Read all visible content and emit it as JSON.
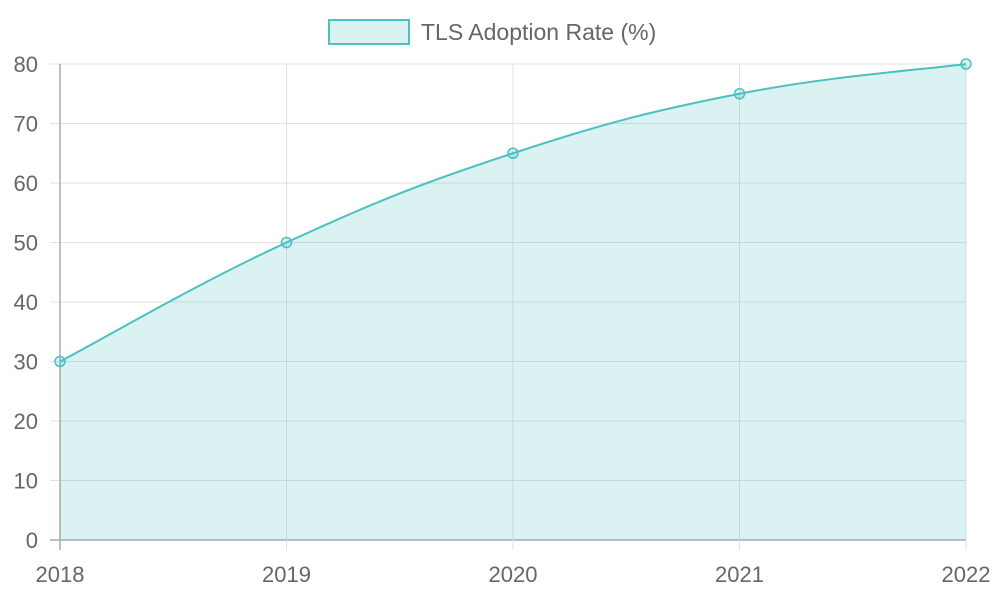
{
  "chart_data": {
    "type": "line",
    "fill": true,
    "categories": [
      "2018",
      "2019",
      "2020",
      "2021",
      "2022"
    ],
    "series": [
      {
        "name": "TLS Adoption Rate (%)",
        "values": [
          30,
          50,
          65,
          75,
          80
        ],
        "color": "#4bc0c0",
        "fill_color": "rgba(75,192,192,0.2)"
      }
    ],
    "ylim": [
      0,
      80
    ],
    "yticks": [
      0,
      10,
      20,
      30,
      40,
      50,
      60,
      70,
      80
    ],
    "grid": true,
    "legend": "top"
  }
}
